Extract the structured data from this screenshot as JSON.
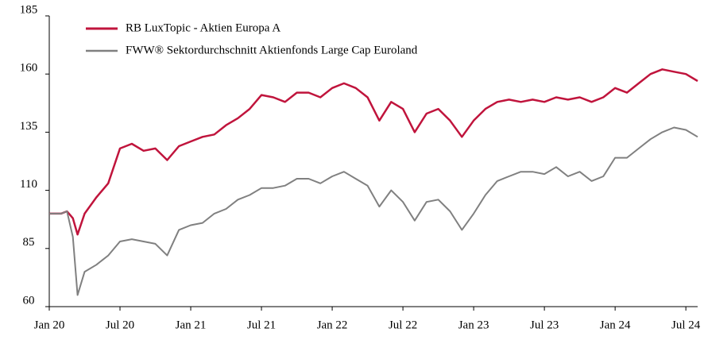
{
  "chart_data": {
    "type": "line",
    "x": [
      0,
      1,
      1.5,
      2,
      2.4,
      3,
      4,
      5,
      6,
      7,
      8,
      9,
      10,
      11,
      12,
      13,
      14,
      15,
      16,
      17,
      18,
      19,
      20,
      21,
      22,
      23,
      24,
      25,
      26,
      27,
      28,
      29,
      30,
      31,
      32,
      33,
      34,
      35,
      36,
      37,
      38,
      39,
      40,
      41,
      42,
      43,
      44,
      45,
      46,
      47,
      48,
      49,
      50,
      51,
      52,
      53,
      54,
      55
    ],
    "series": [
      {
        "name": "RB LuxTopic - Aktien Europa A",
        "color": "#c0143c",
        "values": [
          100,
          100,
          101,
          98,
          91,
          100,
          107,
          113,
          128,
          130,
          127,
          128,
          123,
          129,
          131,
          133,
          134,
          138,
          141,
          145,
          151,
          150,
          148,
          152,
          152,
          150,
          154,
          156,
          154,
          150,
          140,
          148,
          145,
          135,
          143,
          145,
          140,
          133,
          140,
          145,
          148,
          149,
          148,
          149,
          148,
          150,
          149,
          150,
          148,
          150,
          154,
          152,
          156,
          160,
          162,
          161,
          160,
          157
        ]
      },
      {
        "name": "FWW® Sektordurchschnitt Aktienfonds Large Cap Euroland",
        "color": "#808080",
        "values": [
          100,
          100,
          101,
          90,
          65,
          75,
          78,
          82,
          88,
          89,
          88,
          87,
          82,
          93,
          95,
          96,
          100,
          102,
          106,
          108,
          111,
          111,
          112,
          115,
          115,
          113,
          116,
          118,
          115,
          112,
          103,
          110,
          105,
          97,
          105,
          106,
          101,
          93,
          100,
          108,
          114,
          116,
          118,
          118,
          117,
          120,
          116,
          118,
          114,
          116,
          124,
          124,
          128,
          132,
          135,
          137,
          136,
          133
        ]
      }
    ],
    "xlim": [
      0,
      55
    ],
    "xticks": [
      {
        "value": 0,
        "label": "Jan 20"
      },
      {
        "value": 6,
        "label": "Jul 20"
      },
      {
        "value": 12,
        "label": "Jan 21"
      },
      {
        "value": 18,
        "label": "Jul 21"
      },
      {
        "value": 24,
        "label": "Jan 22"
      },
      {
        "value": 30,
        "label": "Jul 22"
      },
      {
        "value": 36,
        "label": "Jan 23"
      },
      {
        "value": 42,
        "label": "Jul 23"
      },
      {
        "value": 48,
        "label": "Jan 24"
      },
      {
        "value": 54,
        "label": "Jul 24"
      }
    ],
    "ylim": [
      60,
      185
    ],
    "yticks": [
      60,
      85,
      110,
      135,
      160,
      185
    ],
    "grid": false,
    "legend": "upper left"
  }
}
